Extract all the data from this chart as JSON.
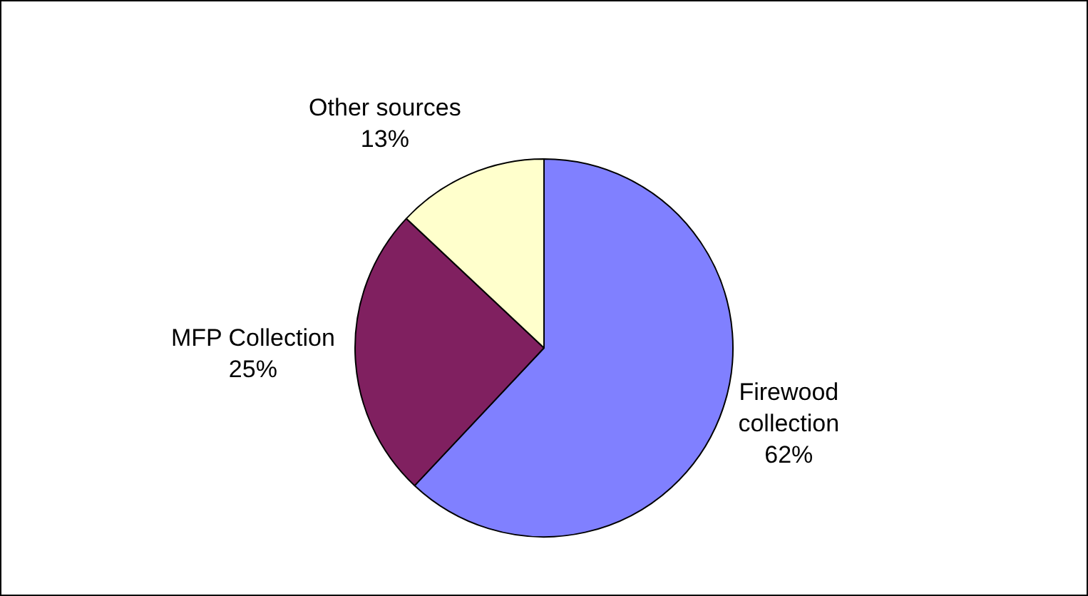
{
  "chart_data": {
    "type": "pie",
    "categories": [
      "Firewood collection",
      "MFP Collection",
      "Other sources"
    ],
    "values": [
      62,
      25,
      13
    ],
    "colors": [
      "#8080ff",
      "#802060",
      "#ffffcc"
    ],
    "value_labels": [
      "62%",
      "25%",
      "13%"
    ],
    "legend": false
  }
}
